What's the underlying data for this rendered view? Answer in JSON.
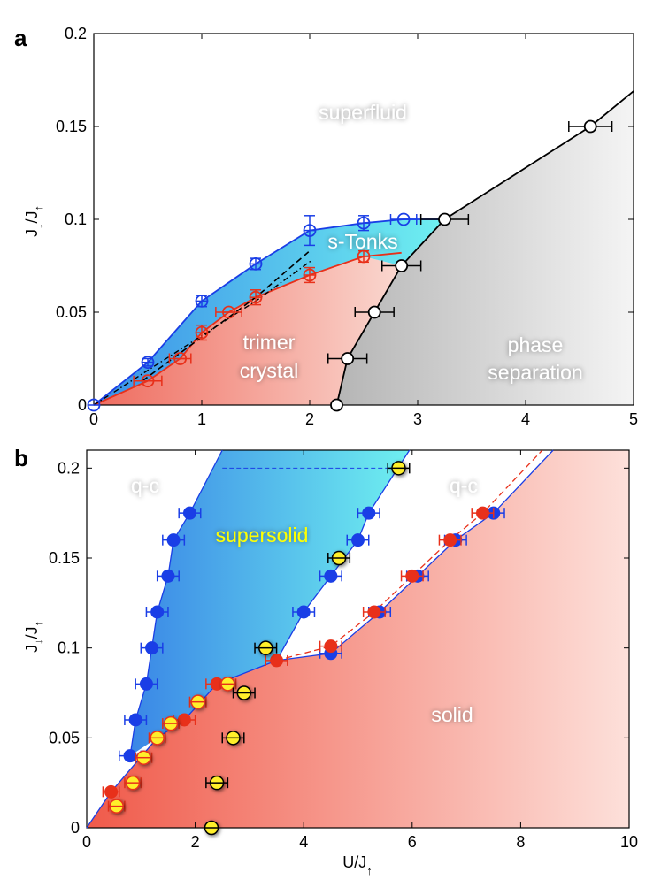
{
  "chart_data": [
    {
      "type": "scatter",
      "panel_label": "a",
      "xlim": [
        0,
        5
      ],
      "ylim": [
        0,
        0.2
      ],
      "xticks": [
        "0",
        "1",
        "2",
        "3",
        "4",
        "5"
      ],
      "yticks": [
        "0",
        "0.05",
        "0.1",
        "0.15",
        "0.2"
      ],
      "ylabel_main": "J",
      "ylabel_sub1": "↓",
      "ylabel_mid": "/J",
      "ylabel_sub2": "↑",
      "regions": {
        "superfluid": "superfluid",
        "s_tonks": "s-Tonks",
        "trimer_line1": "trimer",
        "trimer_line2": "crystal",
        "phase_line1": "phase",
        "phase_line2": "separation"
      },
      "colors": {
        "blue": "#1a3ee6",
        "red": "#e8301a",
        "black": "#000000",
        "cyan": "#6ff0f0",
        "salmon": "#f07a6e",
        "grey": "#c8c8c8"
      },
      "series": [
        {
          "name": "s-Tonks upper boundary",
          "color": "#1a3ee6",
          "marker": "open-circle",
          "points": [
            {
              "x": 0,
              "y": 0,
              "xerr": 0,
              "yerr": 0
            },
            {
              "x": 0.5,
              "y": 0.023,
              "xerr": 0,
              "yerr": 0.002
            },
            {
              "x": 1.0,
              "y": 0.056,
              "xerr": 0,
              "yerr": 0.003
            },
            {
              "x": 1.5,
              "y": 0.076,
              "xerr": 0,
              "yerr": 0.003
            },
            {
              "x": 2.0,
              "y": 0.094,
              "xerr": 0,
              "yerr": 0.008
            },
            {
              "x": 2.5,
              "y": 0.098,
              "xerr": 0,
              "yerr": 0.004
            },
            {
              "x": 2.87,
              "y": 0.1,
              "xerr": 0.12,
              "yerr": 0
            }
          ]
        },
        {
          "name": "trimer crystal boundary",
          "color": "#e8301a",
          "marker": "open-circle",
          "points": [
            {
              "x": 0.5,
              "y": 0.013,
              "xerr": 0.13,
              "yerr": 0
            },
            {
              "x": 0.8,
              "y": 0.025,
              "xerr": 0.1,
              "yerr": 0
            },
            {
              "x": 1.0,
              "y": 0.039,
              "xerr": 0,
              "yerr": 0.004
            },
            {
              "x": 1.25,
              "y": 0.05,
              "xerr": 0.12,
              "yerr": 0
            },
            {
              "x": 1.5,
              "y": 0.058,
              "xerr": 0,
              "yerr": 0.004
            },
            {
              "x": 2.0,
              "y": 0.07,
              "xerr": 0,
              "yerr": 0.004
            },
            {
              "x": 2.5,
              "y": 0.08,
              "xerr": 0,
              "yerr": 0.003
            }
          ]
        },
        {
          "name": "phase separation boundary",
          "color": "#000000",
          "marker": "open-circle",
          "points": [
            {
              "x": 2.25,
              "y": 0,
              "xerr": 0,
              "yerr": 0
            },
            {
              "x": 2.35,
              "y": 0.025,
              "xerr": 0.18,
              "yerr": 0
            },
            {
              "x": 2.6,
              "y": 0.05,
              "xerr": 0.18,
              "yerr": 0
            },
            {
              "x": 2.85,
              "y": 0.075,
              "xerr": 0.18,
              "yerr": 0
            },
            {
              "x": 3.25,
              "y": 0.1,
              "xerr": 0.22,
              "yerr": 0
            },
            {
              "x": 4.6,
              "y": 0.15,
              "xerr": 0.2,
              "yerr": 0
            }
          ],
          "line_extends_to": {
            "x": 5,
            "y": 0.169
          }
        },
        {
          "name": "dashed",
          "color": "#000000",
          "style": "dashed",
          "points": [
            {
              "x": 0.45,
              "y": 0.013
            },
            {
              "x": 1.5,
              "y": 0.058
            },
            {
              "x": 2.0,
              "y": 0.083
            }
          ]
        },
        {
          "name": "dash-dot",
          "color": "#000000",
          "style": "dashdot",
          "points": [
            {
              "x": 0,
              "y": 0
            },
            {
              "x": 1.5,
              "y": 0.056
            },
            {
              "x": 2.02,
              "y": 0.078
            }
          ]
        }
      ]
    },
    {
      "type": "scatter",
      "panel_label": "b",
      "xlim": [
        0,
        10
      ],
      "ylim": [
        0,
        0.21
      ],
      "xticks": [
        "0",
        "2",
        "4",
        "6",
        "8",
        "10"
      ],
      "yticks": [
        "0",
        "0.05",
        "0.1",
        "0.15",
        "0.2"
      ],
      "xlabel_main": "U/J",
      "xlabel_sub": "↑",
      "ylabel_main": "J",
      "ylabel_sub1": "↓",
      "ylabel_mid": "/J",
      "ylabel_sub2": "↑",
      "regions": {
        "qc_left": "q-c",
        "qc_right": "q-c",
        "supersolid": "supersolid",
        "solid": "solid"
      },
      "colors": {
        "blue": "#1a3ee6",
        "red": "#e8301a",
        "yellow": "#ffef2a",
        "cyan": "#6ff0f0",
        "salmon": "#f07a6e"
      },
      "series": [
        {
          "name": "supersolid left boundary",
          "color": "#1a3ee6",
          "marker": "filled-circle",
          "points": [
            {
              "x": 0.8,
              "y": 0.04,
              "xerr": 0.2,
              "yerr": 0
            },
            {
              "x": 0.9,
              "y": 0.06,
              "xerr": 0.2,
              "yerr": 0
            },
            {
              "x": 1.1,
              "y": 0.08,
              "xerr": 0.2,
              "yerr": 0
            },
            {
              "x": 1.2,
              "y": 0.1,
              "xerr": 0.2,
              "yerr": 0
            },
            {
              "x": 1.3,
              "y": 0.12,
              "xerr": 0.2,
              "yerr": 0
            },
            {
              "x": 1.5,
              "y": 0.14,
              "xerr": 0.2,
              "yerr": 0
            },
            {
              "x": 1.6,
              "y": 0.16,
              "xerr": 0.2,
              "yerr": 0
            },
            {
              "x": 1.9,
              "y": 0.175,
              "xerr": 0.2,
              "yerr": 0
            }
          ]
        },
        {
          "name": "supersolid right boundary",
          "color": "#1a3ee6",
          "marker": "filled-circle",
          "points": [
            {
              "x": 4.0,
              "y": 0.12,
              "xerr": 0.2,
              "yerr": 0
            },
            {
              "x": 4.5,
              "y": 0.14,
              "xerr": 0.2,
              "yerr": 0
            },
            {
              "x": 5.0,
              "y": 0.16,
              "xerr": 0.2,
              "yerr": 0
            },
            {
              "x": 5.2,
              "y": 0.175,
              "xerr": 0.2,
              "yerr": 0
            }
          ]
        },
        {
          "name": "solid boundary (blue)",
          "color": "#1a3ee6",
          "marker": "filled-circle",
          "points": [
            {
              "x": 4.5,
              "y": 0.097,
              "xerr": 0.2,
              "yerr": 0
            },
            {
              "x": 5.4,
              "y": 0.12,
              "xerr": 0.2,
              "yerr": 0
            },
            {
              "x": 6.1,
              "y": 0.14,
              "xerr": 0.2,
              "yerr": 0
            },
            {
              "x": 6.8,
              "y": 0.16,
              "xerr": 0.2,
              "yerr": 0
            },
            {
              "x": 7.5,
              "y": 0.175,
              "xerr": 0.2,
              "yerr": 0
            }
          ]
        },
        {
          "name": "solid boundary (red)",
          "color": "#e8301a",
          "marker": "filled-circle",
          "points": [
            {
              "x": 0.45,
              "y": 0.02,
              "xerr": 0.15,
              "yerr": 0
            },
            {
              "x": 1.8,
              "y": 0.06,
              "xerr": 0.2,
              "yerr": 0
            },
            {
              "x": 2.4,
              "y": 0.08,
              "xerr": 0.2,
              "yerr": 0
            },
            {
              "x": 3.5,
              "y": 0.093,
              "xerr": 0.2,
              "yerr": 0
            },
            {
              "x": 4.5,
              "y": 0.101,
              "xerr": 0.2,
              "yerr": 0
            },
            {
              "x": 5.3,
              "y": 0.12,
              "xerr": 0.2,
              "yerr": 0
            },
            {
              "x": 6.0,
              "y": 0.14,
              "xerr": 0.2,
              "yerr": 0
            },
            {
              "x": 6.7,
              "y": 0.16,
              "xerr": 0.2,
              "yerr": 0
            },
            {
              "x": 7.3,
              "y": 0.175,
              "xerr": 0.2,
              "yerr": 0
            }
          ]
        },
        {
          "name": "yellow markers",
          "color": "#ffef2a",
          "marker": "filled-circle",
          "points": [
            {
              "x": 2.3,
              "y": 0,
              "xerr": 0,
              "yerr": 0
            },
            {
              "x": 0.55,
              "y": 0.012,
              "xerr": 0.15,
              "yerr": 0
            },
            {
              "x": 0.85,
              "y": 0.025,
              "xerr": 0.15,
              "yerr": 0
            },
            {
              "x": 1.05,
              "y": 0.039,
              "xerr": 0.15,
              "yerr": 0
            },
            {
              "x": 1.3,
              "y": 0.05,
              "xerr": 0.15,
              "yerr": 0
            },
            {
              "x": 1.55,
              "y": 0.058,
              "xerr": 0.15,
              "yerr": 0
            },
            {
              "x": 2.05,
              "y": 0.07,
              "xerr": 0.15,
              "yerr": 0
            },
            {
              "x": 2.6,
              "y": 0.08,
              "xerr": 0.15,
              "yerr": 0
            },
            {
              "x": 2.4,
              "y": 0.025,
              "xerr": 0.2,
              "yerr": 0
            },
            {
              "x": 2.7,
              "y": 0.05,
              "xerr": 0.2,
              "yerr": 0
            },
            {
              "x": 2.9,
              "y": 0.075,
              "xerr": 0.2,
              "yerr": 0
            },
            {
              "x": 3.3,
              "y": 0.1,
              "xerr": 0.2,
              "yerr": 0
            },
            {
              "x": 4.65,
              "y": 0.15,
              "xerr": 0.2,
              "yerr": 0
            },
            {
              "x": 5.75,
              "y": 0.2,
              "xerr": 0.2,
              "yerr": 0
            }
          ]
        }
      ]
    }
  ]
}
